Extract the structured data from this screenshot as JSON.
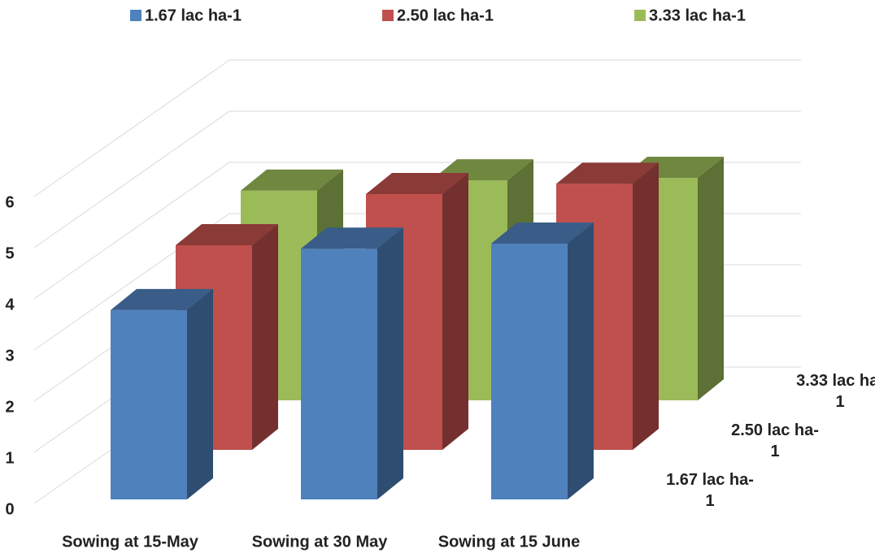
{
  "chart_data": {
    "type": "bar3d",
    "categories": [
      "Sowing at 15-May",
      "Sowing at 30 May",
      "Sowing at 15 June"
    ],
    "series": [
      {
        "name": "1.67 lac ha-1",
        "color": "#4f81bd",
        "values": [
          3.7,
          4.9,
          5.0
        ]
      },
      {
        "name": "2.50 lac ha-1",
        "color": "#c0504d",
        "values": [
          4.0,
          5.0,
          5.2
        ]
      },
      {
        "name": "3.33 lac ha-1",
        "color": "#9bbb59",
        "values": [
          4.1,
          4.3,
          4.35
        ]
      }
    ],
    "ylim": [
      0,
      6
    ],
    "yticks": [
      0,
      1,
      2,
      3,
      4,
      5,
      6
    ],
    "grid": true,
    "legend": "top"
  }
}
